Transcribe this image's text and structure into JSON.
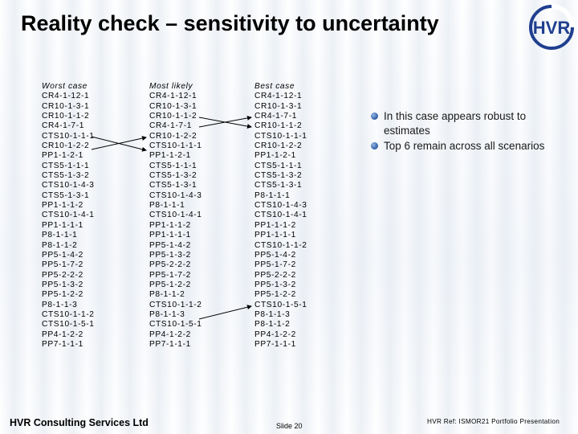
{
  "slide": {
    "title": "Reality check – sensitivity to uncertainty"
  },
  "columns": {
    "worst": {
      "heading": "Worst case",
      "items": [
        "CR4-1-12-1",
        "CR10-1-3-1",
        "CR10-1-1-2",
        "CR4-1-7-1",
        "CTS10-1-1-1",
        "CR10-1-2-2",
        "PP1-1-2-1",
        "CTS5-1-1-1",
        "CTS5-1-3-2",
        "CTS10-1-4-3",
        "CTS5-1-3-1",
        "PP1-1-1-2",
        "CTS10-1-4-1",
        "PP1-1-1-1",
        "P8-1-1-1",
        "P8-1-1-2",
        "PP5-1-4-2",
        "PP5-1-7-2",
        "PP5-2-2-2",
        "PP5-1-3-2",
        "PP5-1-2-2",
        "P8-1-1-3",
        "CTS10-1-1-2",
        "CTS10-1-5-1",
        "PP4-1-2-2",
        "PP7-1-1-1"
      ]
    },
    "likely": {
      "heading": "Most likely",
      "items": [
        "CR4-1-12-1",
        "CR10-1-3-1",
        "CR10-1-1-2",
        "CR4-1-7-1",
        "CR10-1-2-2",
        "CTS10-1-1-1",
        "PP1-1-2-1",
        "CTS5-1-1-1",
        "CTS5-1-3-2",
        "CTS5-1-3-1",
        "CTS10-1-4-3",
        "P8-1-1-1",
        "CTS10-1-4-1",
        "PP1-1-1-2",
        "PP1-1-1-1",
        "PP5-1-4-2",
        "PP5-1-3-2",
        "PP5-2-2-2",
        "PP5-1-7-2",
        "PP5-1-2-2",
        "P8-1-1-2",
        "CTS10-1-1-2",
        "P8-1-1-3",
        "CTS10-1-5-1",
        "PP4-1-2-2",
        "PP7-1-1-1"
      ]
    },
    "best": {
      "heading": "Best case",
      "items": [
        "CR4-1-12-1",
        "CR10-1-3-1",
        "CR4-1-7-1",
        "CR10-1-1-2",
        "CTS10-1-1-1",
        "CR10-1-2-2",
        "PP1-1-2-1",
        "CTS5-1-1-1",
        "CTS5-1-3-2",
        "CTS5-1-3-1",
        "P8-1-1-1",
        "CTS10-1-4-3",
        "CTS10-1-4-1",
        "PP1-1-1-2",
        "PP1-1-1-1",
        "CTS10-1-1-2",
        "PP5-1-4-2",
        "PP5-1-7-2",
        "PP5-2-2-2",
        "PP5-1-3-2",
        "PP5-1-2-2",
        "CTS10-1-5-1",
        "P8-1-1-3",
        "P8-1-1-2",
        "PP4-1-2-2",
        "PP7-1-1-1"
      ]
    }
  },
  "bullets": [
    "In this case appears robust to estimates",
    "Top 6 remain across all scenarios"
  ],
  "footer": {
    "company": "HVR Consulting Services Ltd",
    "slide_number": "Slide 20",
    "reference": "HVR Ref: ISMOR21 Portfolio Presentation"
  },
  "logo": {
    "icon": "hvr-logo-icon",
    "text": "HVR",
    "color": "#1f3f8f"
  }
}
